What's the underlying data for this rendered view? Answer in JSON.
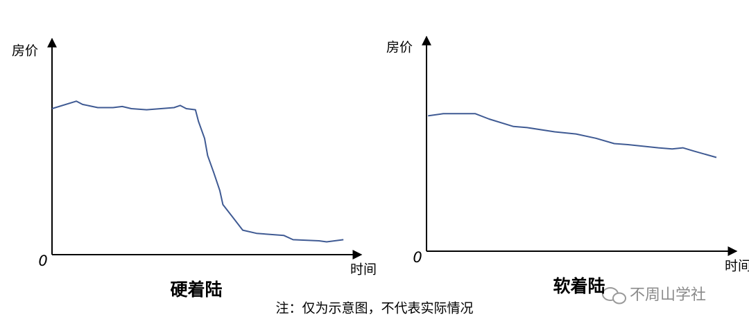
{
  "chart_data": [
    {
      "type": "line",
      "title": "硬着陆",
      "y_label": "房价",
      "x_label": "时间",
      "x": [
        0,
        8,
        10,
        15,
        20,
        23,
        26,
        31,
        40,
        42,
        44,
        47,
        48,
        50,
        51,
        53,
        55,
        56,
        59,
        62.5,
        67,
        76,
        79,
        87.5,
        90,
        95.5
      ],
      "values": [
        68.5,
        72,
        70.5,
        69,
        69,
        69.5,
        68.5,
        68,
        69,
        70,
        68.5,
        68,
        62.5,
        54.5,
        46.5,
        38.5,
        30,
        23.5,
        18,
        11.5,
        10,
        9,
        7,
        6.5,
        6,
        7
      ],
      "color": "#3f5a93",
      "xlim": [
        0,
        100
      ],
      "ylim": [
        0,
        100
      ],
      "yticks": [
        0
      ]
    },
    {
      "type": "line",
      "title": "软着陆",
      "y_label": "房价",
      "x_label": "时间",
      "x": [
        0.5,
        5.5,
        16,
        20.5,
        28.5,
        33,
        42,
        49,
        55.5,
        61.5,
        66,
        76,
        80.5,
        84,
        87.5,
        95
      ],
      "values": [
        63.5,
        64.5,
        64.5,
        62,
        58.5,
        58,
        56,
        55,
        53,
        50.5,
        50,
        48.5,
        48,
        48.5,
        47,
        44
      ],
      "color": "#3f5a93",
      "xlim": [
        0,
        100
      ],
      "ylim": [
        0,
        100
      ],
      "yticks": [
        0
      ]
    }
  ],
  "note": "注：仅为示意图，不代表实际情况",
  "watermark": "不周山学社"
}
